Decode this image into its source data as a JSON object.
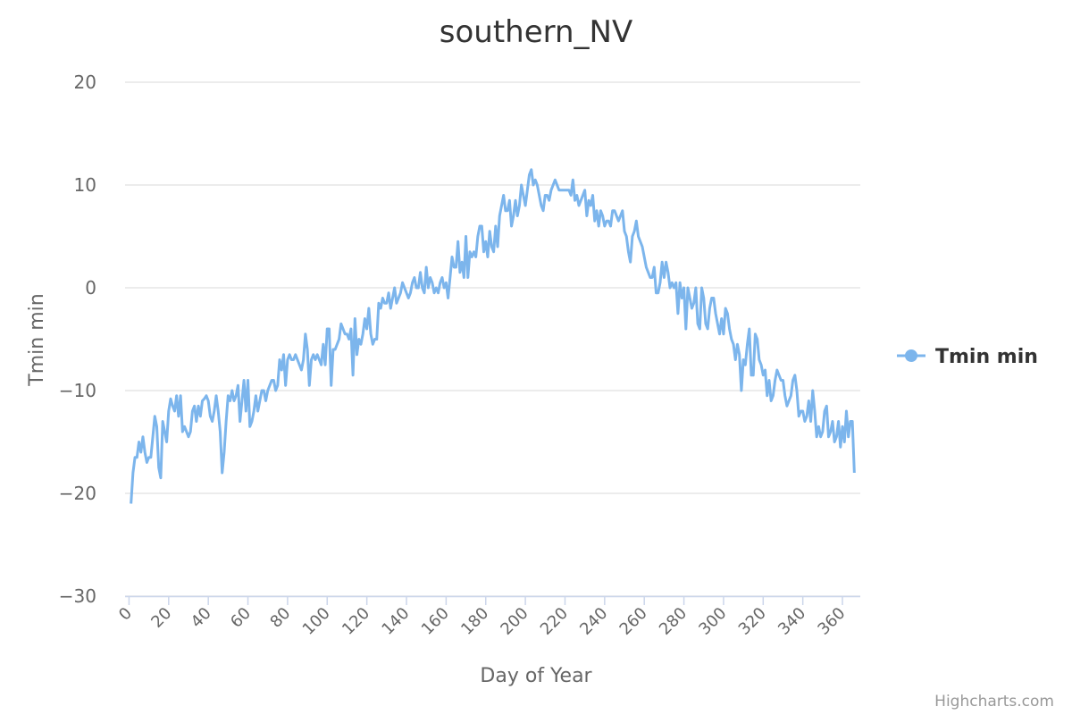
{
  "chart_data": {
    "type": "line",
    "title": "southern_NV",
    "x_label": "Day of Year",
    "y_label": "Tmin min",
    "credits": "Highcharts.com",
    "legend": "right",
    "grid": true,
    "xlim": [
      -2,
      369
    ],
    "xticks": [
      0,
      20,
      40,
      60,
      80,
      100,
      120,
      140,
      160,
      180,
      200,
      220,
      240,
      260,
      280,
      300,
      320,
      340,
      360
    ],
    "ylim": [
      -30,
      20
    ],
    "yticks": [
      {
        "value": -30,
        "label": "−30"
      },
      {
        "value": -20,
        "label": "−20"
      },
      {
        "value": -10,
        "label": "−10"
      },
      0,
      10,
      20
    ],
    "x": [
      1,
      2,
      3,
      4,
      5,
      6,
      7,
      8,
      9,
      10,
      11,
      12,
      13,
      14,
      15,
      16,
      17,
      18,
      19,
      20,
      21,
      22,
      23,
      24,
      25,
      26,
      27,
      28,
      29,
      30,
      31,
      32,
      33,
      34,
      35,
      36,
      37,
      38,
      39,
      40,
      41,
      42,
      43,
      44,
      45,
      46,
      47,
      48,
      49,
      50,
      51,
      52,
      53,
      54,
      55,
      56,
      57,
      58,
      59,
      60,
      61,
      62,
      63,
      64,
      65,
      66,
      67,
      68,
      69,
      70,
      71,
      72,
      73,
      74,
      75,
      76,
      77,
      78,
      79,
      80,
      81,
      82,
      83,
      84,
      85,
      86,
      87,
      88,
      89,
      90,
      91,
      92,
      93,
      94,
      95,
      96,
      97,
      98,
      99,
      100,
      101,
      102,
      103,
      104,
      105,
      106,
      107,
      108,
      109,
      110,
      111,
      112,
      113,
      114,
      115,
      116,
      117,
      118,
      119,
      120,
      121,
      122,
      123,
      124,
      125,
      126,
      127,
      128,
      129,
      130,
      131,
      132,
      133,
      134,
      135,
      136,
      137,
      138,
      139,
      140,
      141,
      142,
      143,
      144,
      145,
      146,
      147,
      148,
      149,
      150,
      151,
      152,
      153,
      154,
      155,
      156,
      157,
      158,
      159,
      160,
      161,
      162,
      163,
      164,
      165,
      166,
      167,
      168,
      169,
      170,
      171,
      172,
      173,
      174,
      175,
      176,
      177,
      178,
      179,
      180,
      181,
      182,
      183,
      184,
      185,
      186,
      187,
      188,
      189,
      190,
      191,
      192,
      193,
      194,
      195,
      196,
      197,
      198,
      199,
      200,
      201,
      202,
      203,
      204,
      205,
      206,
      207,
      208,
      209,
      210,
      211,
      212,
      213,
      214,
      215,
      216,
      217,
      218,
      219,
      220,
      221,
      222,
      223,
      224,
      225,
      226,
      227,
      228,
      229,
      230,
      231,
      232,
      233,
      234,
      235,
      236,
      237,
      238,
      239,
      240,
      241,
      242,
      243,
      244,
      245,
      246,
      247,
      248,
      249,
      250,
      251,
      252,
      253,
      254,
      255,
      256,
      257,
      258,
      259,
      260,
      261,
      262,
      263,
      264,
      265,
      266,
      267,
      268,
      269,
      270,
      271,
      272,
      273,
      274,
      275,
      276,
      277,
      278,
      279,
      280,
      281,
      282,
      283,
      284,
      285,
      286,
      287,
      288,
      289,
      290,
      291,
      292,
      293,
      294,
      295,
      296,
      297,
      298,
      299,
      300,
      301,
      302,
      303,
      304,
      305,
      306,
      307,
      308,
      309,
      310,
      311,
      312,
      313,
      314,
      315,
      316,
      317,
      318,
      319,
      320,
      321,
      322,
      323,
      324,
      325,
      326,
      327,
      328,
      329,
      330,
      331,
      332,
      333,
      334,
      335,
      336,
      337,
      338,
      339,
      340,
      341,
      342,
      343,
      344,
      345,
      346,
      347,
      348,
      349,
      350,
      351,
      352,
      353,
      354,
      355,
      356,
      357,
      358,
      359,
      360,
      361,
      362,
      363,
      364,
      365,
      366
    ],
    "series": [
      {
        "name": "Tmin min",
        "color": "#7cb5ec",
        "values": [
          -21,
          -18,
          -16.5,
          -16.5,
          -15,
          -16,
          -14.5,
          -16,
          -17,
          -16.5,
          -16.5,
          -14.5,
          -12.5,
          -13.5,
          -17.5,
          -18.5,
          -13,
          -14,
          -15,
          -12,
          -10.8,
          -11.5,
          -12,
          -10.5,
          -12.5,
          -10.5,
          -14,
          -13.5,
          -14,
          -14.5,
          -14,
          -12,
          -11.5,
          -13,
          -11.5,
          -12.5,
          -11,
          -10.8,
          -10.5,
          -11,
          -12.5,
          -13,
          -12,
          -10.5,
          -12,
          -14,
          -18,
          -16,
          -13,
          -10.5,
          -11,
          -10,
          -11,
          -10.5,
          -9.5,
          -13,
          -11,
          -9,
          -12,
          -9,
          -13.5,
          -13,
          -12,
          -10.5,
          -12,
          -11,
          -10,
          -10,
          -11,
          -10,
          -9.5,
          -9,
          -9,
          -10,
          -9.5,
          -7,
          -8,
          -6.5,
          -9.5,
          -7,
          -6.5,
          -7,
          -7,
          -6.5,
          -7,
          -7.5,
          -8,
          -7,
          -4.5,
          -6,
          -9.5,
          -7,
          -6.5,
          -7,
          -6.5,
          -7,
          -7.5,
          -5.5,
          -7.5,
          -4,
          -4,
          -9.5,
          -6,
          -6,
          -5.5,
          -5,
          -3.5,
          -4,
          -4.5,
          -4.5,
          -5,
          -4,
          -8.5,
          -3,
          -6.5,
          -5,
          -5.5,
          -4.5,
          -3,
          -4,
          -2,
          -4.5,
          -5.5,
          -5,
          -5,
          -1.5,
          -2,
          -1,
          -1.5,
          -1.5,
          -0.5,
          -2,
          -1,
          0,
          -1.5,
          -1,
          -0.5,
          0.5,
          0,
          -0.5,
          -1,
          -0.5,
          0.5,
          1,
          0,
          0,
          1.5,
          0,
          -0.5,
          2,
          0,
          1,
          0.5,
          -0.5,
          0,
          -0.5,
          0.5,
          1,
          0,
          0.5,
          -1,
          1,
          3,
          2,
          2,
          4.5,
          1.5,
          2.5,
          1,
          5,
          1,
          3.5,
          3,
          3.5,
          3,
          5,
          6,
          6,
          3.5,
          4.5,
          3,
          5.5,
          4,
          3.5,
          6,
          4,
          7,
          8,
          9,
          7.5,
          7.5,
          8.5,
          6,
          7,
          8.5,
          7,
          8,
          10,
          9,
          8,
          9.5,
          11,
          11.5,
          10,
          10.5,
          10,
          9,
          8,
          7.5,
          9,
          9,
          8.5,
          9.5,
          10,
          10.5,
          10,
          9.5,
          9.5,
          9.5,
          9.5,
          9.5,
          9.5,
          9,
          10.5,
          8.5,
          9,
          8,
          8.5,
          9,
          9.5,
          7,
          8.5,
          8,
          9,
          6.5,
          7.5,
          6,
          7.5,
          7,
          6,
          6.5,
          6.5,
          6,
          7.5,
          7.5,
          7,
          6.5,
          7,
          7.5,
          5.5,
          5,
          3.5,
          2.5,
          5,
          5.5,
          6.5,
          5,
          4.5,
          4,
          3,
          2,
          1.5,
          1,
          1,
          2,
          -0.5,
          -0.5,
          0.5,
          2.5,
          1,
          2.5,
          1.5,
          0,
          0.5,
          0,
          0.5,
          -2.5,
          0.5,
          -1,
          0,
          -4,
          0,
          -1,
          -2,
          -1.5,
          0,
          -3.5,
          -4,
          0,
          -1,
          -3.5,
          -4,
          -2,
          -1,
          -1,
          -2.5,
          -3.5,
          -4.5,
          -3,
          -4.5,
          -2,
          -2.5,
          -4,
          -5,
          -5.5,
          -7,
          -5.5,
          -6.5,
          -10,
          -7,
          -7.5,
          -5.5,
          -4,
          -8.5,
          -8.5,
          -4.5,
          -5,
          -7,
          -7.5,
          -8.5,
          -8,
          -10.5,
          -9,
          -11,
          -10.5,
          -9,
          -8,
          -8.5,
          -9,
          -9,
          -10.5,
          -11.5,
          -11,
          -10.5,
          -9,
          -8.5,
          -10,
          -12.5,
          -12,
          -12,
          -13,
          -12.5,
          -11,
          -13,
          -10,
          -12,
          -14.5,
          -13.5,
          -14.5,
          -14,
          -12,
          -11.5,
          -14.5,
          -14,
          -13,
          -15,
          -14.5,
          -13,
          -15.5,
          -13.5,
          -15,
          -12,
          -14.5,
          -13,
          -13,
          -18
        ]
      }
    ]
  }
}
